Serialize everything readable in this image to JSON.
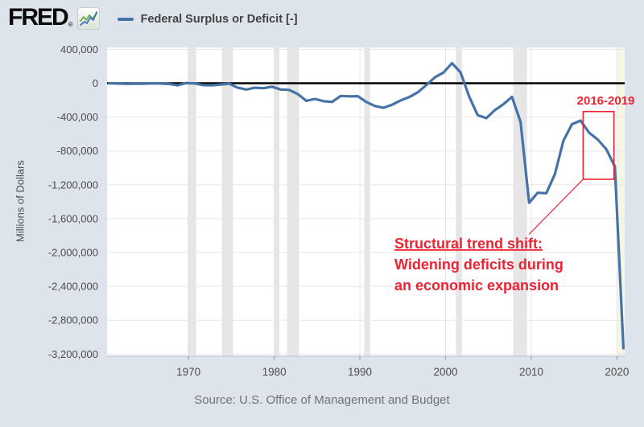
{
  "header": {
    "logo_text": "FRED",
    "logo_registered": "®",
    "legend": {
      "label": "Federal Surplus or Deficit [-]",
      "line_color": "#4572a7"
    }
  },
  "footer": {
    "source": "Source: U.S. Office of Management and Budget"
  },
  "chart_data": {
    "type": "line",
    "series_name": "Federal Surplus or Deficit [-]",
    "ylabel": "Millions of Dollars",
    "x": [
      1960,
      1961,
      1962,
      1963,
      1964,
      1965,
      1966,
      1967,
      1968,
      1969,
      1970,
      1971,
      1972,
      1973,
      1974,
      1975,
      1976,
      1977,
      1978,
      1979,
      1980,
      1981,
      1982,
      1983,
      1984,
      1985,
      1986,
      1987,
      1988,
      1989,
      1990,
      1991,
      1992,
      1993,
      1994,
      1995,
      1996,
      1997,
      1998,
      1999,
      2000,
      2001,
      2002,
      2003,
      2004,
      2005,
      2006,
      2007,
      2008,
      2009,
      2010,
      2011,
      2012,
      2013,
      2014,
      2015,
      2016,
      2017,
      2018,
      2019,
      2020
    ],
    "values": [
      301,
      -3335,
      -7146,
      -4756,
      -5915,
      -1411,
      -3698,
      -8643,
      -25161,
      3242,
      -2842,
      -23033,
      -23373,
      -14908,
      -6135,
      -53242,
      -73732,
      -53659,
      -59185,
      -40726,
      -73830,
      -78968,
      -127977,
      -207802,
      -185367,
      -212308,
      -221227,
      -149730,
      -155178,
      -152639,
      -221036,
      -269238,
      -290321,
      -255051,
      -203186,
      -163952,
      -107431,
      -21884,
      69270,
      125610,
      236241,
      128236,
      -157758,
      -377585,
      -412727,
      -318346,
      -248181,
      -160701,
      -458553,
      -1412688,
      -1294373,
      -1299595,
      -1076573,
      -679775,
      -484793,
      -441960,
      -584651,
      -665446,
      -779137,
      -983592,
      -3131917
    ],
    "fiscal_year_offset": 0.75,
    "xlim": [
      1960.5,
      2020.9
    ],
    "ylim": [
      -3200000,
      400000
    ],
    "x_ticks": [
      "1970",
      "1980",
      "1990",
      "2000",
      "2010",
      "2020"
    ],
    "x_tick_years": [
      1970,
      1980,
      1990,
      2000,
      2010,
      2020
    ],
    "y_tick_values": [
      400000,
      0,
      -400000,
      -800000,
      -1200000,
      -1600000,
      -2000000,
      -2400000,
      -2800000,
      -3200000
    ],
    "y_tick_labels": [
      "400,000",
      "0",
      "-400,000",
      "-800,000",
      "-1,200,000",
      "-1,600,000",
      "-2,000,000",
      "-2,400,000",
      "-2,800,000",
      "-3,200,000"
    ],
    "grid": true,
    "legend_position": "top-left",
    "recession_bands": [
      [
        1969.9,
        1970.9
      ],
      [
        1973.9,
        1975.2
      ],
      [
        1980.0,
        1980.6
      ],
      [
        1981.5,
        1982.9
      ],
      [
        1990.5,
        1991.2
      ],
      [
        2001.2,
        2001.9
      ],
      [
        2007.9,
        2009.5
      ]
    ],
    "highlight_band": {
      "range": [
        2020.05,
        2020.9
      ],
      "color": "#f7f6e2"
    },
    "annotations": {
      "box": {
        "label": "2016-2019",
        "year_start": 2016.05,
        "year_end": 2019.65,
        "value_top": -335000,
        "value_bottom": -1135000
      },
      "callout_lines": [
        "Structural trend shift:",
        "Widening deficits during",
        "an economic expansion"
      ]
    },
    "colors": {
      "line": "#4572a7",
      "zero_line": "#000000",
      "plot_bg": "#ffffff",
      "page_bg": "#dee4ec",
      "recession_band": "#e6e6e6",
      "grid": "#e7e7e7",
      "axis_line": "#c2cedb",
      "tick_mark": "#9aadc0",
      "axis_text": "#4d4d4d",
      "annotation_red": "#ee2233"
    }
  }
}
